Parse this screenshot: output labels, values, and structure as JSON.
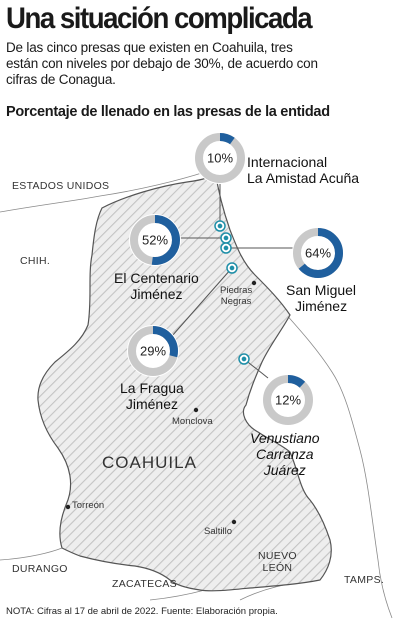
{
  "header": {
    "title": "Una situación complicada",
    "subtitle": "De las cinco presas que existen en Coahuila, tres están con niveles por debajo de 30%, de acuerdo con cifras de Conagua."
  },
  "chart_title": "Porcentaje de llenado en las presas de la entidad",
  "colors": {
    "fill": "#1f5f9e",
    "track": "#c9c9c9",
    "state": "#eeeeee",
    "hatch": "#c4c4c4"
  },
  "regions": {
    "usa": "ESTADOS UNIDOS",
    "chih": "CHIH.",
    "coahuila": "COAHUILA",
    "durango": "DURANGO",
    "zacatecas": "ZACATECAS",
    "nuevo_leon": "NUEVO\nLEÓN",
    "tamps": "TAMPS."
  },
  "cities": {
    "piedras_negras": "Piedras\nNegras",
    "monclova": "Monclova",
    "torreon": "Torreón",
    "saltillo": "Saltillo"
  },
  "dams": [
    {
      "name": "Internacional\nLa Amistad Acuña",
      "percent": 10,
      "percent_label": "10%"
    },
    {
      "name": "El Centenario\nJiménez",
      "percent": 52,
      "percent_label": "52%"
    },
    {
      "name": "San Miguel\nJiménez",
      "percent": 64,
      "percent_label": "64%"
    },
    {
      "name": "La Fragua\nJiménez",
      "percent": 29,
      "percent_label": "29%"
    },
    {
      "name": "Venustiano\nCarranza\nJuárez",
      "percent": 12,
      "percent_label": "12%"
    }
  ],
  "note": "NOTA: Cifras al 17 de abril de 2022. Fuente: Elaboración propia."
}
